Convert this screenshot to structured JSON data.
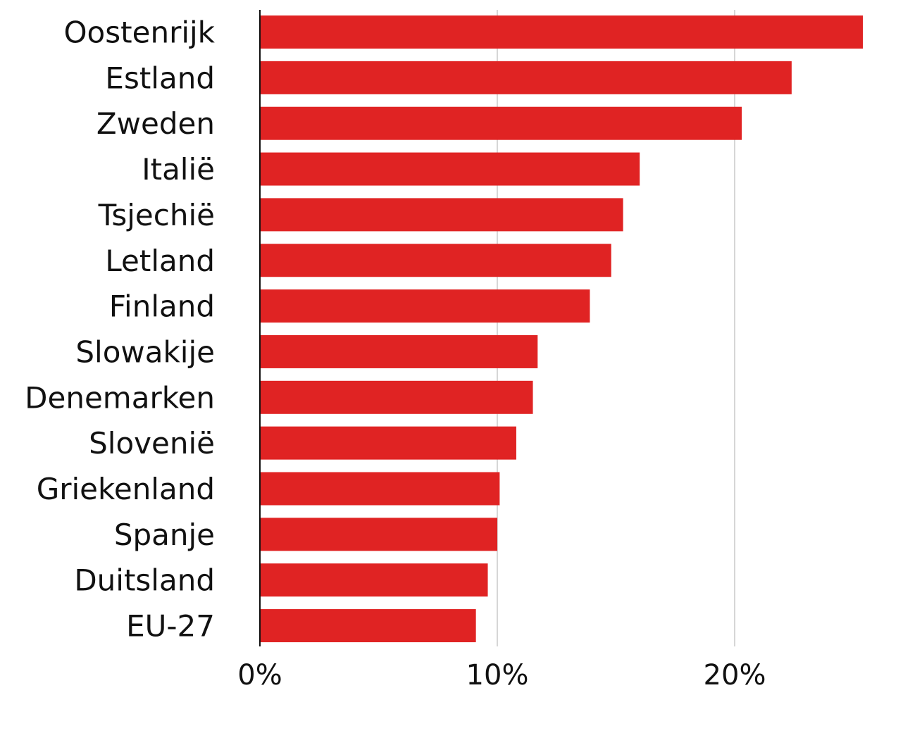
{
  "chart_data": {
    "type": "bar",
    "orientation": "horizontal",
    "title": "",
    "xlabel": "",
    "ylabel": "",
    "categories": [
      "Oostenrijk",
      "Estland",
      "Zweden",
      "Italië",
      "Tsjechië",
      "Letland",
      "Finland",
      "Slowakije",
      "Denemarken",
      "Slovenië",
      "Griekenland",
      "Spanje",
      "Duitsland",
      "EU-27"
    ],
    "values": [
      25.4,
      22.4,
      20.3,
      16.0,
      15.3,
      14.8,
      13.9,
      11.7,
      11.5,
      10.8,
      10.1,
      10.0,
      9.6,
      9.1
    ],
    "xlim": [
      0,
      26.5
    ],
    "ticks": [
      0,
      10,
      20
    ],
    "tick_labels": [
      "0%",
      "10%",
      "20%"
    ],
    "grid": true,
    "bar_color": "#e02323",
    "grid_color": "#d6d6d6"
  }
}
